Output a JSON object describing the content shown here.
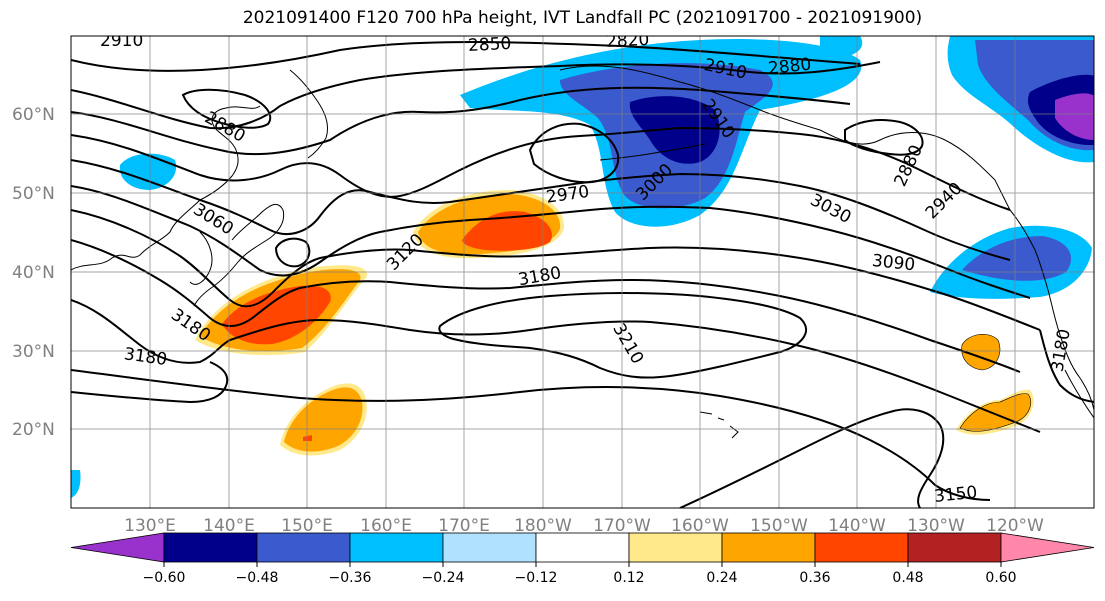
{
  "title": "2021091400 F120 700 hPa height, IVT Landfall PC (2021091700 - 2021091900)",
  "latitude_labels": [
    "60°N",
    "50°N",
    "40°N",
    "30°N",
    "20°N"
  ],
  "longitude_labels": [
    "130°E",
    "140°E",
    "150°E",
    "160°E",
    "170°E",
    "180°W",
    "170°W",
    "160°W",
    "150°W",
    "140°W",
    "130°W",
    "120°W"
  ],
  "contour_labels": [
    "2910",
    "2850",
    "2820",
    "2910",
    "2880",
    "2880",
    "2910",
    "2970",
    "3000",
    "2880",
    "2940",
    "3060",
    "3120",
    "3180",
    "3030",
    "3090",
    "3180",
    "3210",
    "3180",
    "3180",
    "3150"
  ],
  "colorbar": {
    "tick_labels": [
      "−0.60",
      "−0.48",
      "−0.36",
      "−0.24",
      "−0.12",
      "0.12",
      "0.24",
      "0.36",
      "0.48",
      "0.60"
    ],
    "colors": [
      "#9932cc",
      "#00008b",
      "#3a5acd",
      "#00bfff",
      "#b0e2ff",
      "#ffffff",
      "#ffe98a",
      "#ffa500",
      "#ff4500",
      "#b22222",
      "#ff88aa"
    ]
  }
}
